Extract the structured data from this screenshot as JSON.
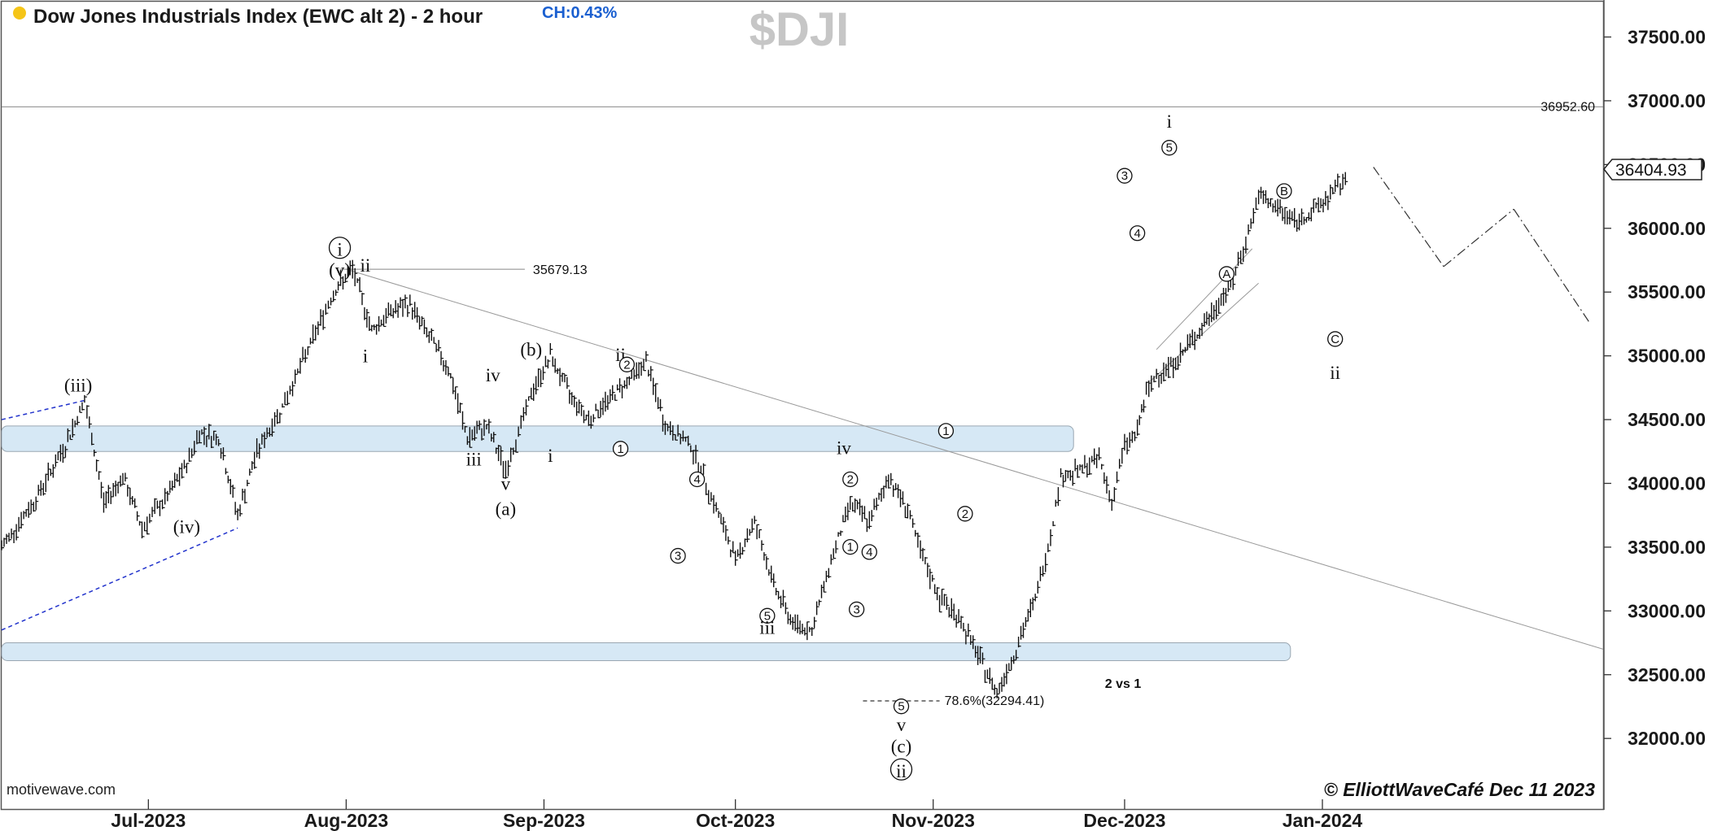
{
  "header": {
    "title": "Dow Jones Industrials Index (EWC alt 2) - 2 hour",
    "change": "CH:0.43%",
    "symbol": "$DJI",
    "status_color": "#f5c518"
  },
  "footer": {
    "watermark": "motivewave.com",
    "copyright": "© ElliottWaveCafé Dec 11 2023"
  },
  "chart_data": {
    "type": "ohlc",
    "y_ticks": [
      "37500.00",
      "37000.00",
      "36500.00",
      "36000.00",
      "35500.00",
      "35000.00",
      "34500.00",
      "34000.00",
      "33500.00",
      "33000.00",
      "32500.00",
      "32000.00"
    ],
    "ylim": [
      31650,
      37950
    ],
    "x_ticks": [
      "Jul-2023",
      "Aug-2023",
      "Sep-2023",
      "Oct-2023",
      "Nov-2023",
      "Dec-2023",
      "Jan-2024"
    ],
    "x_tick_dates": [
      "2023-07-01",
      "2023-08-01",
      "2023-09-01",
      "2023-10-01",
      "2023-11-01",
      "2023-12-01",
      "2024-01-01"
    ],
    "xlim": [
      "2023-06-08",
      "2024-02-14"
    ],
    "last_price": "36404.93",
    "levels": [
      {
        "value": 36952.6,
        "label": "36952.60"
      },
      {
        "value": 35679.13,
        "label": "35679.13"
      },
      {
        "value": 32294.41,
        "label": "78.6%(32294.41)"
      }
    ],
    "zones": [
      {
        "from": 34250,
        "to": 34450
      },
      {
        "from": 32610,
        "to": 32750
      }
    ],
    "price_path": [
      [
        "2023-06-08",
        33500
      ],
      [
        "2023-06-13",
        33850
      ],
      [
        "2023-06-18",
        34300
      ],
      [
        "2023-06-21",
        34650
      ],
      [
        "2023-06-24",
        33850
      ],
      [
        "2023-06-27",
        34050
      ],
      [
        "2023-06-30",
        33650
      ],
      [
        "2023-07-04",
        33900
      ],
      [
        "2023-07-07",
        34150
      ],
      [
        "2023-07-09",
        34400
      ],
      [
        "2023-07-12",
        34350
      ],
      [
        "2023-07-15",
        33750
      ],
      [
        "2023-07-18",
        34250
      ],
      [
        "2023-07-22",
        34600
      ],
      [
        "2023-07-26",
        35050
      ],
      [
        "2023-07-30",
        35500
      ],
      [
        "2023-08-02",
        35679
      ],
      [
        "2023-08-05",
        35200
      ],
      [
        "2023-08-08",
        35350
      ],
      [
        "2023-08-11",
        35400
      ],
      [
        "2023-08-14",
        35150
      ],
      [
        "2023-08-17",
        34900
      ],
      [
        "2023-08-20",
        34350
      ],
      [
        "2023-08-23",
        34450
      ],
      [
        "2023-08-26",
        34100
      ],
      [
        "2023-08-30",
        34700
      ],
      [
        "2023-09-02",
        35000
      ],
      [
        "2023-09-05",
        34700
      ],
      [
        "2023-09-08",
        34500
      ],
      [
        "2023-09-11",
        34650
      ],
      [
        "2023-09-14",
        34800
      ],
      [
        "2023-09-17",
        34950
      ],
      [
        "2023-09-20",
        34450
      ],
      [
        "2023-09-24",
        34300
      ],
      [
        "2023-09-28",
        33800
      ],
      [
        "2023-10-01",
        33400
      ],
      [
        "2023-10-04",
        33700
      ],
      [
        "2023-10-07",
        33200
      ],
      [
        "2023-10-10",
        32900
      ],
      [
        "2023-10-13",
        32850
      ],
      [
        "2023-10-16",
        33400
      ],
      [
        "2023-10-19",
        33850
      ],
      [
        "2023-10-22",
        33700
      ],
      [
        "2023-10-25",
        34050
      ],
      [
        "2023-10-28",
        33800
      ],
      [
        "2023-10-30",
        33450
      ],
      [
        "2023-11-02",
        33100
      ],
      [
        "2023-11-05",
        32950
      ],
      [
        "2023-11-08",
        32650
      ],
      [
        "2023-11-11",
        32360
      ],
      [
        "2023-11-14",
        32700
      ],
      [
        "2023-11-17",
        33100
      ],
      [
        "2023-11-19",
        33500
      ],
      [
        "2023-11-21",
        34050
      ],
      [
        "2023-11-24",
        34100
      ],
      [
        "2023-11-27",
        34200
      ],
      [
        "2023-11-29",
        33850
      ],
      [
        "2023-12-01",
        34300
      ],
      [
        "2023-12-03",
        34400
      ],
      [
        "2023-12-04",
        34650
      ],
      [
        "2023-12-06",
        34850
      ],
      [
        "2023-12-09",
        34950
      ],
      [
        "2023-12-12",
        35150
      ],
      [
        "2023-12-15",
        35350
      ],
      [
        "2023-12-18",
        35600
      ],
      [
        "2023-12-20",
        35900
      ],
      [
        "2023-12-22",
        36250
      ],
      [
        "2023-12-25",
        36150
      ],
      [
        "2023-12-28",
        36050
      ],
      [
        "2023-12-31",
        36150
      ],
      [
        "2024-01-03",
        36300
      ],
      [
        "2024-01-05",
        36400
      ]
    ],
    "projection": [
      [
        "2024-01-09",
        36480
      ],
      [
        "2024-01-20",
        35700
      ],
      [
        "2024-01-31",
        36150
      ],
      [
        "2024-02-12",
        35250
      ]
    ],
    "wave_labels": [
      {
        "t": "i",
        "d": "2023-07-31",
        "v": 35790,
        "style": "circled-big"
      },
      {
        "t": "(v)",
        "d": "2023-07-31",
        "v": 35790,
        "style": "roman",
        "row": 1
      },
      {
        "t": "ii",
        "d": "2023-08-04",
        "v": 35660,
        "style": "roman"
      },
      {
        "t": "i",
        "d": "2023-08-04",
        "v": 34950,
        "style": "roman"
      },
      {
        "t": "(iii)",
        "d": "2023-06-20",
        "v": 34720,
        "style": "roman"
      },
      {
        "t": "(iv)",
        "d": "2023-07-07",
        "v": 33610,
        "style": "roman"
      },
      {
        "t": "iii",
        "d": "2023-08-21",
        "v": 34140,
        "style": "roman"
      },
      {
        "t": "iv",
        "d": "2023-08-24",
        "v": 34800,
        "style": "roman"
      },
      {
        "t": "v",
        "d": "2023-08-26",
        "v": 33950,
        "style": "roman"
      },
      {
        "t": "(a)",
        "d": "2023-08-26",
        "v": 33750,
        "style": "roman"
      },
      {
        "t": "(b)",
        "d": "2023-08-30",
        "v": 35000,
        "style": "roman"
      },
      {
        "t": "i",
        "d": "2023-09-02",
        "v": 34170,
        "style": "roman"
      },
      {
        "t": "ii",
        "d": "2023-09-13",
        "v": 34960,
        "style": "roman"
      },
      {
        "t": "2",
        "d": "2023-09-14",
        "v": 34900,
        "style": "circled"
      },
      {
        "t": "1",
        "d": "2023-09-13",
        "v": 34240,
        "style": "circled"
      },
      {
        "t": "3",
        "d": "2023-09-22",
        "v": 33400,
        "style": "circled"
      },
      {
        "t": "4",
        "d": "2023-09-25",
        "v": 34000,
        "style": "circled"
      },
      {
        "t": "5",
        "d": "2023-10-06",
        "v": 32930,
        "style": "circled"
      },
      {
        "t": "iii",
        "d": "2023-10-06",
        "v": 32820,
        "style": "roman"
      },
      {
        "t": "iv",
        "d": "2023-10-18",
        "v": 34230,
        "style": "roman"
      },
      {
        "t": "2",
        "d": "2023-10-19",
        "v": 34000,
        "style": "circled"
      },
      {
        "t": "1",
        "d": "2023-10-19",
        "v": 33470,
        "style": "circled"
      },
      {
        "t": "3",
        "d": "2023-10-20",
        "v": 32980,
        "style": "circled"
      },
      {
        "t": "4",
        "d": "2023-10-22",
        "v": 33430,
        "style": "circled"
      },
      {
        "t": "5",
        "d": "2023-10-27",
        "v": 32220,
        "style": "circled"
      },
      {
        "t": "v",
        "d": "2023-10-27",
        "v": 32060,
        "style": "roman"
      },
      {
        "t": "(c)",
        "d": "2023-10-27",
        "v": 31890,
        "style": "roman"
      },
      {
        "t": "ii",
        "d": "2023-10-27",
        "v": 31700,
        "style": "circled-big"
      },
      {
        "t": "1",
        "d": "2023-11-03",
        "v": 34380,
        "style": "circled"
      },
      {
        "t": "2",
        "d": "2023-11-06",
        "v": 33730,
        "style": "circled"
      },
      {
        "t": "3",
        "d": "2023-12-01",
        "v": 36380,
        "style": "circled"
      },
      {
        "t": "4",
        "d": "2023-12-03",
        "v": 35930,
        "style": "circled"
      },
      {
        "t": "i",
        "d": "2023-12-08",
        "v": 36790,
        "style": "roman"
      },
      {
        "t": "5",
        "d": "2023-12-08",
        "v": 36600,
        "style": "circled"
      },
      {
        "t": "A",
        "d": "2023-12-17",
        "v": 35610,
        "style": "circled"
      },
      {
        "t": "B",
        "d": "2023-12-26",
        "v": 36260,
        "style": "circled"
      },
      {
        "t": "C",
        "d": "2024-01-03",
        "v": 35100,
        "style": "circled"
      },
      {
        "t": "ii",
        "d": "2024-01-03",
        "v": 34820,
        "style": "roman"
      }
    ],
    "annotation": "2 vs 1"
  }
}
